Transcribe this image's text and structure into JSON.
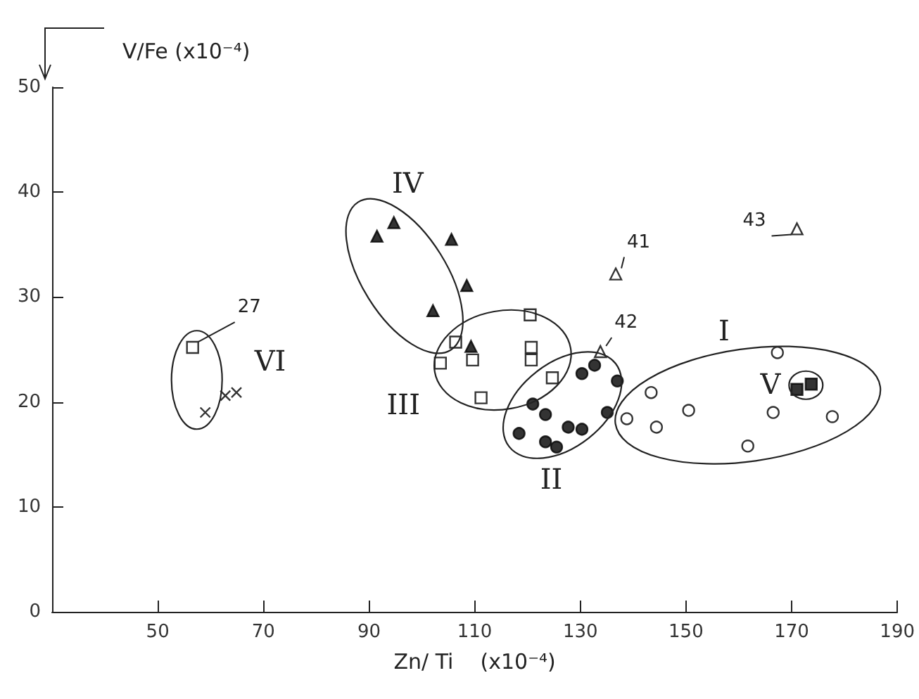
{
  "chart_data": {
    "type": "scatter",
    "xlabel": "Zn/ Ti    (x10⁻⁴)",
    "ylabel": "V/Fe (x10⁻⁴)",
    "xlim": [
      30,
      190
    ],
    "xticks": [
      50,
      70,
      90,
      110,
      130,
      150,
      170,
      190
    ],
    "ylim": [
      0,
      50
    ],
    "yticks": [
      0,
      10,
      20,
      30,
      40,
      50
    ],
    "grid": false,
    "series": [
      {
        "marker": "circle",
        "color": "#ffffff",
        "x": [
          167.3,
          143.4,
          150.5,
          166.5,
          138.8,
          144.4,
          177.7,
          161.7
        ],
        "values": [
          24.7,
          20.9,
          19.2,
          19.0,
          18.4,
          17.6,
          18.6,
          15.8
        ]
      },
      {
        "marker": "circle",
        "color": "#000000",
        "x": [
          132.7,
          130.3,
          137.0,
          121.0,
          135.1,
          123.4,
          127.7,
          130.3,
          118.4,
          123.4,
          125.5
        ],
        "values": [
          23.5,
          22.7,
          22.0,
          19.8,
          19.0,
          18.8,
          17.6,
          17.4,
          17.0,
          16.2,
          15.7
        ]
      },
      {
        "marker": "square",
        "color": "#ffffff",
        "x": [
          120.5,
          106.4,
          109.6,
          103.5,
          120.7,
          120.7,
          124.7,
          111.2,
          56.6
        ],
        "values": [
          28.3,
          25.7,
          24.0,
          23.7,
          25.2,
          24.0,
          22.3,
          20.4,
          25.2
        ]
      },
      {
        "marker": "triangle",
        "color": "#000000",
        "x": [
          91.5,
          94.7,
          108.5,
          102.1,
          109.3,
          105.6
        ],
        "values": [
          35.8,
          37.1,
          31.1,
          28.7,
          25.3,
          35.5
        ]
      },
      {
        "marker": "square",
        "color": "#000000",
        "x": [
          171.0,
          173.7
        ],
        "values": [
          21.2,
          21.7
        ]
      },
      {
        "marker": "cross",
        "color": "#000000",
        "x": [
          59.0,
          62.8,
          64.9
        ],
        "values": [
          19.0,
          20.6,
          20.9
        ]
      },
      {
        "marker": "triangle",
        "color": "#ffffff",
        "x": [
          136.7,
          133.8,
          171.0
        ],
        "values": [
          32.2,
          24.8,
          36.5
        ]
      }
    ],
    "annotations": [
      {
        "text": "27",
        "x": 56.6,
        "y": 25.2
      },
      {
        "text": "41",
        "x": 136.7,
        "y": 32.2
      },
      {
        "text": "42",
        "x": 133.8,
        "y": 24.8
      },
      {
        "text": "43",
        "x": 171.0,
        "y": 36.5
      },
      "I",
      "II",
      "III",
      "IV",
      "V",
      "VI"
    ]
  }
}
